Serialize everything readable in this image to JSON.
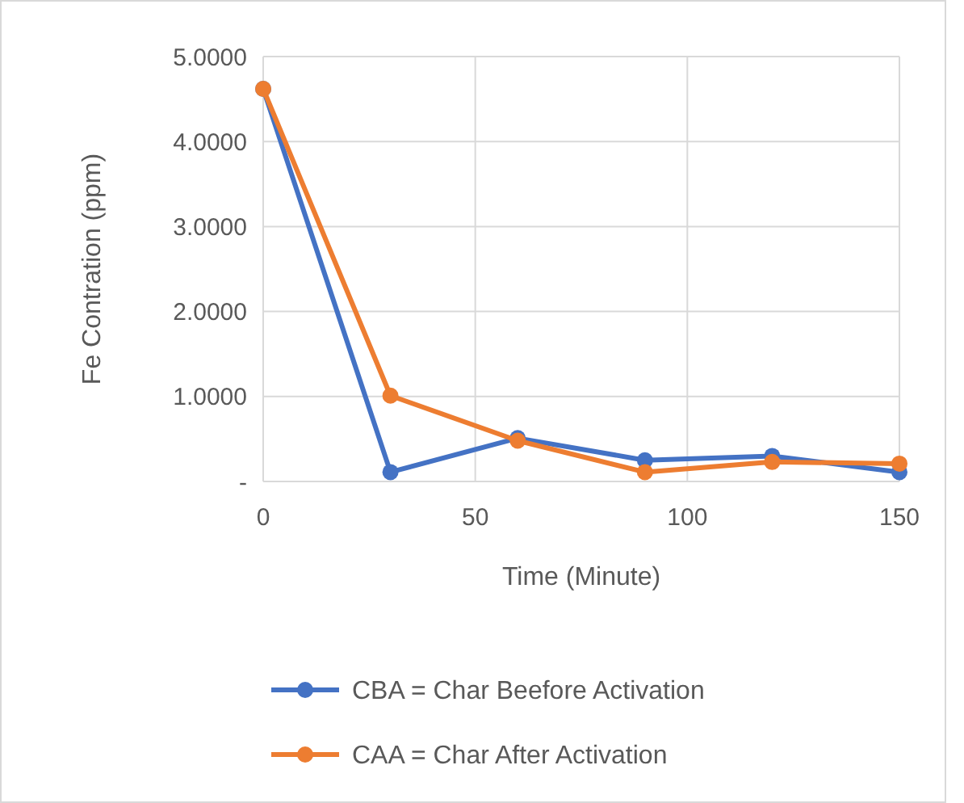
{
  "chart_data": {
    "type": "line",
    "xlabel": "Time (Minute)",
    "ylabel": "Fe Contration (ppm)",
    "x": [
      0,
      30,
      60,
      90,
      120,
      150
    ],
    "series": [
      {
        "name": "CBA = Char Beefore Activation",
        "color": "#4472c4",
        "values": [
          4.62,
          0.11,
          0.51,
          0.25,
          0.3,
          0.11
        ]
      },
      {
        "name": "CAA = Char After Activation",
        "color": "#ed7d31",
        "values": [
          4.62,
          1.01,
          0.48,
          0.11,
          0.23,
          0.21
        ]
      }
    ],
    "xlim": [
      0,
      150
    ],
    "xticks": [
      0,
      50,
      100,
      150
    ],
    "ylim": [
      0,
      5
    ],
    "yticks": [
      {
        "value": 0,
        "label": "-"
      },
      {
        "value": 1,
        "label": "1.0000"
      },
      {
        "value": 2,
        "label": "2.0000"
      },
      {
        "value": 3,
        "label": "3.0000"
      },
      {
        "value": 4,
        "label": "4.0000"
      },
      {
        "value": 5,
        "label": "5.0000"
      }
    ],
    "grid": true,
    "legend": "bottom",
    "marker": "circle",
    "line_style": "solid"
  }
}
